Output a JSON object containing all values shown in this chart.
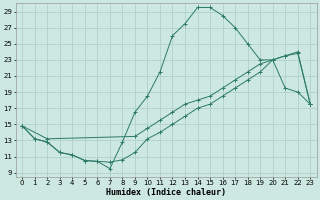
{
  "xlabel": "Humidex (Indice chaleur)",
  "line_color": "#2d7a6a",
  "bg_color": "#cce8e0",
  "grid_color": "#aacec6",
  "xlim": [
    -0.5,
    23.5
  ],
  "ylim": [
    8.5,
    30.0
  ],
  "xticks": [
    0,
    1,
    2,
    3,
    4,
    5,
    6,
    7,
    8,
    9,
    10,
    11,
    12,
    13,
    14,
    15,
    16,
    17,
    18,
    19,
    20,
    21,
    22,
    23
  ],
  "yticks": [
    9,
    11,
    13,
    15,
    17,
    19,
    21,
    23,
    25,
    27,
    29
  ],
  "line1_x": [
    0,
    1,
    2,
    3,
    4,
    5,
    6,
    7,
    8,
    9,
    10,
    11,
    12,
    13,
    14,
    15,
    16,
    17,
    18,
    19,
    20,
    21,
    22,
    23
  ],
  "line1_y": [
    14.8,
    13.2,
    12.8,
    11.5,
    11.2,
    10.5,
    10.4,
    10.3,
    10.6,
    11.5,
    13.2,
    14.0,
    15.0,
    16.0,
    17.0,
    17.5,
    18.5,
    19.5,
    20.5,
    21.5,
    23.0,
    23.5,
    24.0,
    17.5
  ],
  "line2_x": [
    0,
    1,
    2,
    3,
    4,
    5,
    6,
    7,
    8,
    9,
    10,
    11,
    12,
    13,
    14,
    15,
    16,
    17,
    18,
    19,
    20,
    21,
    22,
    23
  ],
  "line2_y": [
    14.8,
    13.2,
    12.8,
    11.5,
    11.2,
    10.5,
    10.4,
    9.5,
    12.8,
    16.5,
    18.5,
    21.5,
    26.0,
    27.5,
    29.5,
    29.5,
    28.5,
    27.0,
    25.0,
    23.0,
    23.0,
    19.5,
    19.0,
    17.5
  ],
  "line3_x": [
    0,
    2,
    9,
    10,
    11,
    12,
    13,
    14,
    15,
    16,
    17,
    18,
    19,
    20,
    21,
    22,
    23
  ],
  "line3_y": [
    14.8,
    13.2,
    13.5,
    14.5,
    15.5,
    16.5,
    17.5,
    18.0,
    18.5,
    19.5,
    20.5,
    21.5,
    22.5,
    23.0,
    23.5,
    23.8,
    17.5
  ]
}
